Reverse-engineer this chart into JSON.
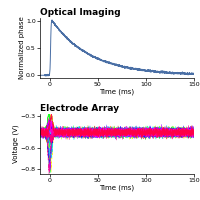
{
  "title1": "Optical Imaging",
  "title2": "Electrode Array",
  "xlabel": "Time (ms)",
  "ylabel1": "Normalized phase",
  "ylabel2": "Voltage (V)",
  "xlim": [
    -10,
    150
  ],
  "ylim1": [
    -0.05,
    1.05
  ],
  "ylim2": [
    -0.85,
    -0.28
  ],
  "xticks": [
    0,
    50,
    100,
    150
  ],
  "yticks1": [
    0.0,
    0.5,
    1.0
  ],
  "yticks2": [
    -0.8,
    -0.6,
    -0.3
  ],
  "line_color1": "#4a6fa5",
  "bg_color": "#ffffff",
  "title_fontsize": 6.5,
  "label_fontsize": 5.0,
  "tick_fontsize": 4.5
}
